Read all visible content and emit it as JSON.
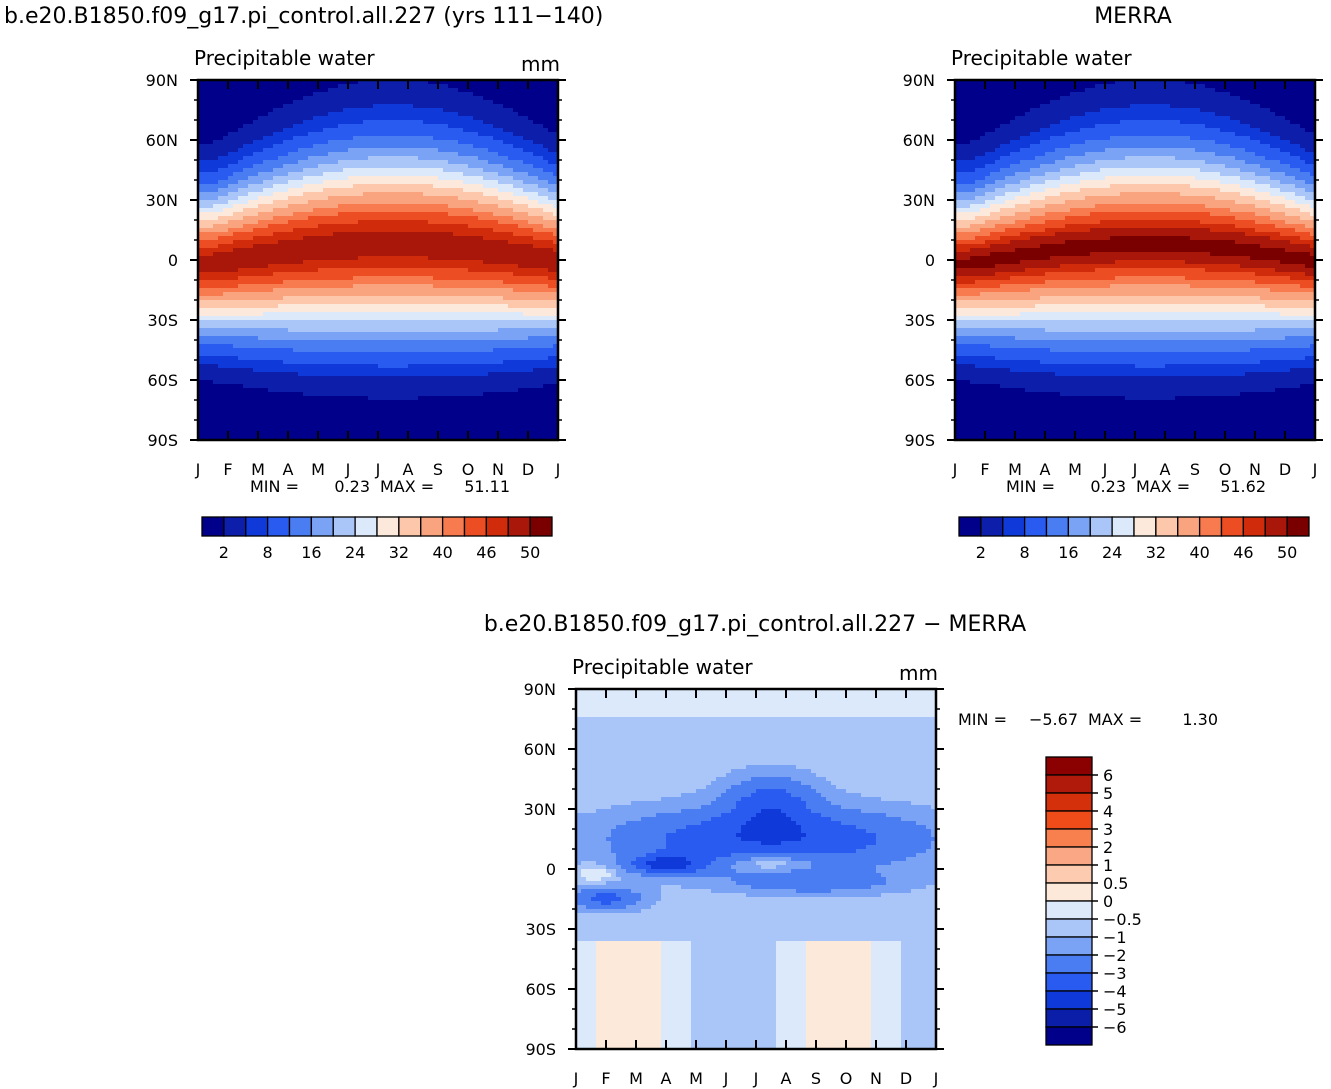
{
  "figure": {
    "panel_model_title": "b.e20.B1850.f09_g17.pi_control.all.227 (yrs 111−140)",
    "panel_obs_title": "MERRA",
    "panel_diff_title": "b.e20.B1850.f09_g17.pi_control.all.227 − MERRA"
  },
  "chart_data": [
    {
      "type": "heatmap",
      "id": "model",
      "subtitle": "Precipitable water",
      "units": "mm",
      "x_ticks": [
        "J",
        "F",
        "M",
        "A",
        "M",
        "J",
        "J",
        "A",
        "S",
        "O",
        "N",
        "D",
        "J"
      ],
      "y_ticks": [
        "90N",
        "60N",
        "30N",
        "0",
        "30S",
        "60S",
        "90S"
      ],
      "ylim": [
        -90,
        90
      ],
      "min_text": "MIN =",
      "min_value": "0.23",
      "max_text": "MAX =",
      "max_value": "51.11",
      "colorbar": {
        "orientation": "horizontal",
        "labels": [
          "2",
          "8",
          "16",
          "24",
          "32",
          "40",
          "46",
          "50"
        ],
        "colors": [
          "#00008b",
          "#0d1eab",
          "#0f3ad9",
          "#2a5bf0",
          "#4a7df2",
          "#7aa3f5",
          "#aac6f8",
          "#dbe9fb",
          "#fde9dc",
          "#fcc7ab",
          "#f9a37f",
          "#f87a4f",
          "#ec4d22",
          "#d02c0c",
          "#a8170a",
          "#7a0000"
        ]
      }
    },
    {
      "type": "heatmap",
      "id": "obs",
      "subtitle": "Precipitable water",
      "units": "",
      "x_ticks": [
        "J",
        "F",
        "M",
        "A",
        "M",
        "J",
        "J",
        "A",
        "S",
        "O",
        "N",
        "D",
        "J"
      ],
      "y_ticks": [
        "90N",
        "60N",
        "30N",
        "0",
        "30S",
        "60S",
        "90S"
      ],
      "ylim": [
        -90,
        90
      ],
      "min_text": "MIN =",
      "min_value": "0.23",
      "max_text": "MAX =",
      "max_value": "51.62",
      "colorbar": {
        "orientation": "horizontal",
        "labels": [
          "2",
          "8",
          "16",
          "24",
          "32",
          "40",
          "46",
          "50"
        ],
        "colors": [
          "#00008b",
          "#0d1eab",
          "#0f3ad9",
          "#2a5bf0",
          "#4a7df2",
          "#7aa3f5",
          "#aac6f8",
          "#dbe9fb",
          "#fde9dc",
          "#fcc7ab",
          "#f9a37f",
          "#f87a4f",
          "#ec4d22",
          "#d02c0c",
          "#a8170a",
          "#7a0000"
        ]
      }
    },
    {
      "type": "heatmap",
      "id": "diff",
      "subtitle": "Precipitable water",
      "units": "mm",
      "x_ticks": [
        "J",
        "F",
        "M",
        "A",
        "M",
        "J",
        "J",
        "A",
        "S",
        "O",
        "N",
        "D",
        "J"
      ],
      "y_ticks": [
        "90N",
        "60N",
        "30N",
        "0",
        "30S",
        "60S",
        "90S"
      ],
      "ylim": [
        -90,
        90
      ],
      "min_text": "MIN =",
      "min_value": "−5.67",
      "max_text": "MAX =",
      "max_value": "1.30",
      "colorbar": {
        "orientation": "vertical",
        "labels": [
          "6",
          "5",
          "4",
          "3",
          "2",
          "1",
          "0.5",
          "0",
          "−0.5",
          "−1",
          "−2",
          "−3",
          "−4",
          "−5",
          "−6"
        ],
        "colors": [
          "#8b0000",
          "#b01a0a",
          "#d4300c",
          "#f04c1a",
          "#f8804f",
          "#faa786",
          "#fccbb0",
          "#fde9d9",
          "#dbe9fb",
          "#aac6f8",
          "#7aa3f5",
          "#4a7df2",
          "#2a5bf0",
          "#0f3ad9",
          "#0a1ea8",
          "#00008b"
        ]
      }
    }
  ]
}
